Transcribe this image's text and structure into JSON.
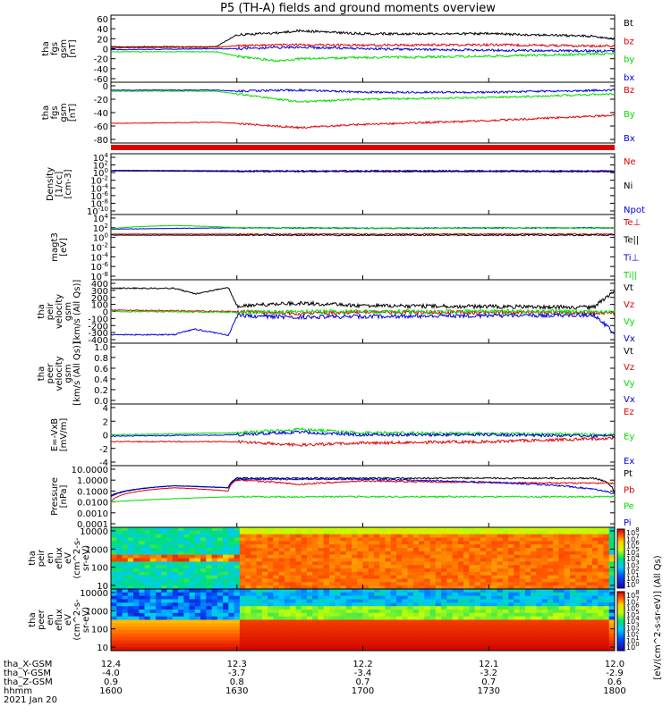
{
  "title": "P5 (TH-A) fields and ground moments overview",
  "time_axis": {
    "tick_hhmm": [
      "1600",
      "1630",
      "1700",
      "1730",
      "1800"
    ],
    "row_labels": [
      "tha_X-GSM",
      "tha_Y-GSM",
      "tha_Z-GSM",
      "hhmm"
    ],
    "x_gsm": [
      "12.4",
      "12.3",
      "12.2",
      "12.1",
      "12.0"
    ],
    "y_gsm": [
      "-4.0",
      "-3.7",
      "-3.4",
      "-3.2",
      "-2.9"
    ],
    "z_gsm": [
      "0.9",
      "0.8",
      "0.7",
      "0.7",
      "0.6"
    ],
    "date": "2021 Jan 20",
    "start_minutes": 960,
    "end_minutes": 1080
  },
  "colorbar_label": "[eV/(cm^2-s-sr-eV)]   (All Qs)",
  "colorbar_ticks": [
    "10^8",
    "10^7",
    "10^6",
    "10^5",
    "10^4",
    "10^3",
    "10^2",
    "10^1",
    "10^0"
  ],
  "colorbar_ticks_lower": [
    "10^8",
    "10^7",
    "10^6",
    "10^5",
    "10^4",
    "10^3",
    "10^2",
    "10^1",
    "10^0"
  ],
  "colors": {
    "black": "#000000",
    "red": "#e00000",
    "green": "#00dd00",
    "blue": "#0000dd"
  },
  "panels": [
    {
      "id": "fgs",
      "ylabel": [
        "tha",
        "fgs",
        "gsm",
        "[nT]"
      ],
      "ticks": [
        "60",
        "40",
        "20",
        "0",
        "-20",
        "-40",
        "-60"
      ],
      "legend": [
        [
          "Bt",
          "black"
        ],
        [
          "bz",
          "red"
        ],
        [
          "by",
          "green"
        ],
        [
          "bx",
          "blue"
        ]
      ]
    },
    {
      "id": "fgs2",
      "ylabel": [
        "tha",
        "fgs",
        "gsm",
        "[nT]"
      ],
      "ticks": [
        "0",
        "-20",
        "-40",
        "-60",
        "-80"
      ],
      "legend": [
        [
          "Bz",
          "red"
        ],
        [
          "By",
          "green"
        ],
        [
          "Bx",
          "blue"
        ]
      ]
    },
    {
      "id": "density",
      "ylabel": [
        "Density",
        "[1/cc]",
        "[cm-3]"
      ],
      "ticks": [
        "10^4",
        "10^2",
        "10^0",
        "10^-2",
        "10^-4",
        "10^-6",
        "10^-8",
        "10^-10"
      ],
      "legend": [
        [
          "Ne",
          "red"
        ],
        [
          "Ni",
          "black"
        ],
        [
          "Npot",
          "blue"
        ]
      ]
    },
    {
      "id": "temp",
      "ylabel": [
        "magt3",
        "[eV]"
      ],
      "ticks": [
        "10^4",
        "10^2",
        "10^0",
        "10^-2",
        "10^-4",
        "10^-6",
        "10^-8"
      ],
      "legend": [
        [
          "Te⊥",
          "red"
        ],
        [
          "Te||",
          "black"
        ],
        [
          "Ti⊥",
          "blue"
        ],
        [
          "Ti||",
          "green"
        ]
      ]
    },
    {
      "id": "peir_v",
      "ylabel": [
        "tha",
        "peir",
        "velocity",
        "gsm",
        "[km/s (All Qs)]"
      ],
      "ticks": [
        "400",
        "300",
        "200",
        "100",
        "0",
        "-100",
        "-200",
        "-300",
        "-400"
      ],
      "legend": [
        [
          "Vt",
          "black"
        ],
        [
          "Vz",
          "red"
        ],
        [
          "Vy",
          "green"
        ],
        [
          "Vx",
          "blue"
        ]
      ]
    },
    {
      "id": "peer_v",
      "ylabel": [
        "tha",
        "peer",
        "velocity",
        "gsm",
        "[km/s (All Qs)]"
      ],
      "ticks": [
        "1.0",
        "0.8",
        "0.6",
        "0.4",
        "0.2",
        "0.0"
      ],
      "legend": [
        [
          "Vt",
          "black"
        ],
        [
          "Vz",
          "red"
        ],
        [
          "Vy",
          "green"
        ],
        [
          "Vx",
          "blue"
        ]
      ]
    },
    {
      "id": "efield",
      "ylabel": [
        "E=-VxB",
        "[mV/m]"
      ],
      "ticks": [
        "4",
        "2",
        "0",
        "-2",
        "-4"
      ],
      "legend": [
        [
          "Ez",
          "red"
        ],
        [
          "Ey",
          "green"
        ],
        [
          "Ex",
          "blue"
        ]
      ]
    },
    {
      "id": "pressure",
      "ylabel": [
        "Pressure",
        "[nPa]"
      ],
      "ticks": [
        "10.0000",
        "1.0000",
        "0.1000",
        "0.0100",
        "0.0010",
        "0.0001"
      ],
      "legend": [
        [
          "Pt",
          "black"
        ],
        [
          "Pb",
          "red"
        ],
        [
          "Pe",
          "green"
        ],
        [
          "Pi",
          "blue"
        ]
      ]
    },
    {
      "id": "peir_en",
      "ylabel": [
        "tha",
        "peir",
        "en",
        "eflux",
        "eV",
        "(cm^2-s-",
        "sr-eV)"
      ],
      "ticks": [
        "10000",
        "1000",
        "100",
        "10"
      ],
      "legend": []
    },
    {
      "id": "peer_en",
      "ylabel": [
        "tha",
        "peer",
        "en",
        "eflux",
        "eV",
        "(cm^2-s-",
        "sr-eV)"
      ],
      "ticks": [
        "10000",
        "1000",
        "100",
        "10"
      ],
      "legend": []
    }
  ],
  "chart_data": {
    "type": "line",
    "title": "P5 (TH-A) fields and ground moments overview",
    "x_unit": "hhmm (2021 Jan 20)",
    "xlim": [
      "1600",
      "1800"
    ],
    "series_panels": [
      {
        "panel": "fgs",
        "ylim": [
          -60,
          60
        ],
        "series": [
          {
            "name": "Bt",
            "color": "black",
            "x": [
              "1600",
              "1625",
              "1630",
              "1640",
              "1645",
              "1700",
              "1730",
              "1755",
              "1800"
            ],
            "values": [
              4,
              4,
              28,
              32,
              36,
              30,
              30,
              25,
              20
            ]
          },
          {
            "name": "bz",
            "color": "red",
            "x": [
              "1600",
              "1625",
              "1630",
              "1645",
              "1700",
              "1730",
              "1800"
            ],
            "values": [
              2,
              3,
              6,
              8,
              7,
              8,
              5
            ]
          },
          {
            "name": "by",
            "color": "green",
            "x": [
              "1600",
              "1625",
              "1630",
              "1640",
              "1645",
              "1700",
              "1730",
              "1800"
            ],
            "values": [
              -6,
              -6,
              -15,
              -25,
              -20,
              -18,
              -15,
              -10
            ]
          },
          {
            "name": "bx",
            "color": "blue",
            "x": [
              "1600",
              "1625",
              "1630",
              "1645",
              "1700",
              "1730",
              "1800"
            ],
            "values": [
              -2,
              0,
              0,
              3,
              0,
              -3,
              -5
            ]
          }
        ]
      },
      {
        "panel": "fgs2",
        "ylim": [
          -90,
          10
        ],
        "series": [
          {
            "name": "Bz",
            "color": "red",
            "x": [
              "1600",
              "1625",
              "1630",
              "1645",
              "1700",
              "1730",
              "1800"
            ],
            "values": [
              -60,
              -58,
              -60,
              -68,
              -62,
              -55,
              -45
            ]
          },
          {
            "name": "By",
            "color": "green",
            "x": [
              "1600",
              "1625",
              "1630",
              "1645",
              "1700",
              "1730",
              "1800"
            ],
            "values": [
              0,
              0,
              -5,
              -20,
              -15,
              -12,
              -5
            ]
          },
          {
            "name": "Bx",
            "color": "blue",
            "x": [
              "1600",
              "1625",
              "1630",
              "1645",
              "1700",
              "1730",
              "1800"
            ],
            "values": [
              2,
              2,
              0,
              2,
              -2,
              -2,
              2
            ]
          }
        ]
      },
      {
        "panel": "density",
        "scale": "log",
        "ylim": [
          1e-10,
          10000.0
        ],
        "series": [
          {
            "name": "Ne",
            "color": "red",
            "x": [
              "1600",
              "1630",
              "1700",
              "1800"
            ],
            "values": [
              3,
              2,
              2,
              2
            ]
          },
          {
            "name": "Ni",
            "color": "black",
            "x": [
              "1600",
              "1630",
              "1700",
              "1800"
            ],
            "values": [
              3,
              2,
              2,
              2
            ]
          },
          {
            "name": "Npot",
            "color": "blue",
            "x": [
              "1600",
              "1630",
              "1700",
              "1800"
            ],
            "values": [
              4,
              3,
              3,
              3
            ]
          }
        ]
      },
      {
        "panel": "temp",
        "scale": "log",
        "ylim": [
          1e-08,
          10000.0
        ],
        "series": [
          {
            "name": "Te⊥",
            "color": "red",
            "x": [
              "1600",
              "1630",
              "1700",
              "1800"
            ],
            "values": [
              5,
              5,
              5,
              5
            ]
          },
          {
            "name": "Te||",
            "color": "black",
            "x": [
              "1600",
              "1630",
              "1700",
              "1800"
            ],
            "values": [
              3,
              3,
              3,
              3
            ]
          },
          {
            "name": "Ti⊥",
            "color": "blue",
            "x": [
              "1600",
              "1630",
              "1700",
              "1800"
            ],
            "values": [
              50,
              100,
              80,
              100
            ]
          },
          {
            "name": "Ti||",
            "color": "green",
            "x": [
              "1600",
              "1615",
              "1630",
              "1700",
              "1800"
            ],
            "values": [
              60,
              300,
              100,
              80,
              100
            ]
          }
        ]
      },
      {
        "panel": "peir_v",
        "ylim": [
          -400,
          400
        ],
        "series": [
          {
            "name": "Vt",
            "color": "black",
            "x": [
              "1600",
              "1615",
              "1620",
              "1628",
              "1630",
              "1645",
              "1700",
              "1730",
              "1755",
              "1800"
            ],
            "values": [
              330,
              330,
              250,
              340,
              80,
              120,
              80,
              70,
              60,
              300
            ]
          },
          {
            "name": "Vz",
            "color": "red",
            "x": [
              "1600",
              "1630",
              "1645",
              "1700",
              "1800"
            ],
            "values": [
              20,
              0,
              -30,
              -10,
              -20
            ]
          },
          {
            "name": "Vy",
            "color": "green",
            "x": [
              "1600",
              "1630",
              "1700",
              "1800"
            ],
            "values": [
              0,
              -10,
              0,
              0
            ]
          },
          {
            "name": "Vx",
            "color": "blue",
            "x": [
              "1600",
              "1615",
              "1620",
              "1628",
              "1630",
              "1645",
              "1700",
              "1730",
              "1755",
              "1800"
            ],
            "values": [
              -330,
              -330,
              -250,
              -340,
              -60,
              -80,
              -70,
              -60,
              -50,
              -300
            ]
          }
        ]
      },
      {
        "panel": "peer_v",
        "ylim": [
          0,
          1
        ],
        "series": []
      },
      {
        "panel": "efield",
        "ylim": [
          -4,
          4
        ],
        "series": [
          {
            "name": "Ez",
            "color": "red",
            "x": [
              "1600",
              "1630",
              "1645",
              "1700",
              "1730",
              "1800"
            ],
            "values": [
              -1,
              -1,
              -1.5,
              -1.2,
              -1,
              -0.5
            ]
          },
          {
            "name": "Ey",
            "color": "green",
            "x": [
              "1600",
              "1630",
              "1645",
              "1700",
              "1730",
              "1800"
            ],
            "values": [
              0,
              0.3,
              0.8,
              0.3,
              0.2,
              0
            ]
          },
          {
            "name": "Ex",
            "color": "blue",
            "x": [
              "1600",
              "1630",
              "1645",
              "1700",
              "1730",
              "1800"
            ],
            "values": [
              -0.2,
              0,
              0.4,
              0,
              0,
              -0.2
            ]
          }
        ]
      },
      {
        "panel": "pressure",
        "scale": "log",
        "ylim": [
          0.0001,
          10
        ],
        "series": [
          {
            "name": "Pt",
            "color": "black",
            "x": [
              "1600",
              "1615",
              "1628",
              "1630",
              "1700",
              "1755",
              "1800"
            ],
            "values": [
              0.04,
              0.3,
              0.2,
              1.5,
              1.5,
              1.5,
              0.05
            ]
          },
          {
            "name": "Pb",
            "color": "red",
            "x": [
              "1600",
              "1615",
              "1628",
              "1630",
              "1645",
              "1700",
              "1730",
              "1800"
            ],
            "values": [
              0.01,
              0.2,
              0.1,
              1.0,
              0.4,
              0.8,
              0.6,
              0.5
            ]
          },
          {
            "name": "Pe",
            "color": "green",
            "x": [
              "1600",
              "1630",
              "1700",
              "1800"
            ],
            "values": [
              0.01,
              0.03,
              0.03,
              0.03
            ]
          },
          {
            "name": "Pi",
            "color": "blue",
            "x": [
              "1600",
              "1615",
              "1628",
              "1630",
              "1700",
              "1800"
            ],
            "values": [
              0.03,
              0.3,
              0.2,
              1.2,
              1.2,
              0.05
            ]
          }
        ]
      }
    ],
    "spectrogram_panels": [
      {
        "panel": "peir_en",
        "type": "heatmap",
        "yscale": "log",
        "ylim": [
          10,
          10000
        ],
        "zscale": "log",
        "zlim": [
          1,
          100000000.0
        ]
      },
      {
        "panel": "peer_en",
        "type": "heatmap",
        "yscale": "log",
        "ylim": [
          10,
          10000
        ],
        "zscale": "log",
        "zlim": [
          1,
          100000000.0
        ]
      }
    ]
  }
}
